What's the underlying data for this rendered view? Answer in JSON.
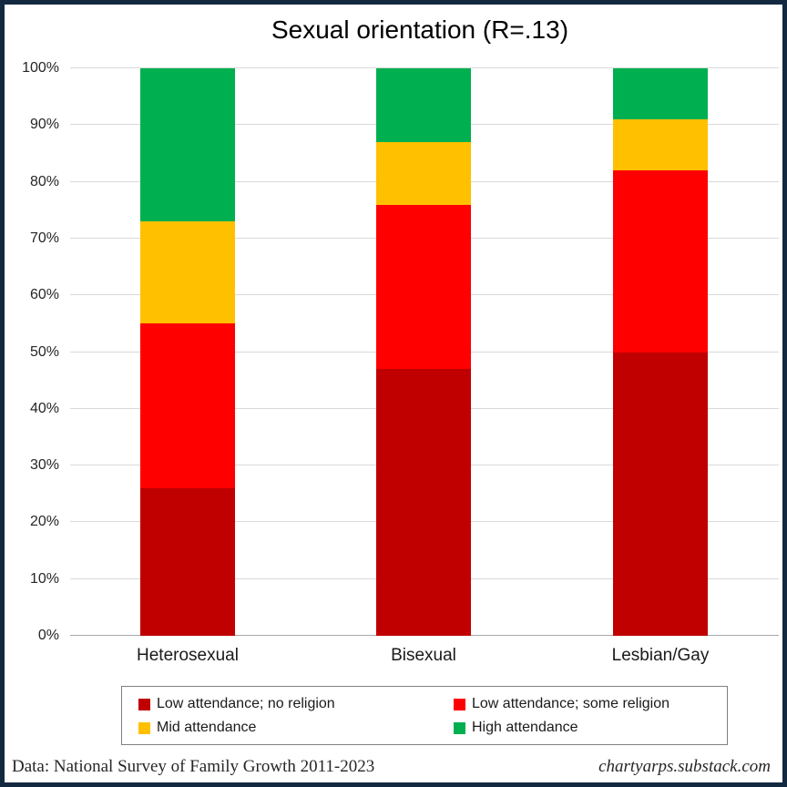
{
  "chart_data": {
    "type": "bar",
    "stacked": true,
    "title": "Sexual orientation (R=.13)",
    "categories": [
      "Heterosexual",
      "Bisexual",
      "Lesbian/Gay"
    ],
    "series": [
      {
        "name": "Low attendance; no religion",
        "color": "#C00000",
        "values": [
          26,
          47,
          50
        ]
      },
      {
        "name": "Low attendance; some religion",
        "color": "#FF0000",
        "values": [
          29,
          29,
          32
        ]
      },
      {
        "name": "Mid attendance",
        "color": "#FFC000",
        "values": [
          18,
          11,
          9
        ]
      },
      {
        "name": "High attendance",
        "color": "#00B050",
        "values": [
          27,
          13,
          9
        ]
      }
    ],
    "xlabel": "",
    "ylabel": "",
    "ylim": [
      0,
      100
    ],
    "y_tick_labels": [
      "0%",
      "10%",
      "20%",
      "30%",
      "40%",
      "50%",
      "60%",
      "70%",
      "80%",
      "90%",
      "100%"
    ],
    "grid": true,
    "legend_position": "bottom"
  },
  "footer": {
    "source": "Data: National Survey of Family Growth 2011-2023",
    "site": "chartyarps.substack.com"
  },
  "colors": {
    "frame_border": "#13293F",
    "gridline": "#D9D9D9",
    "axis_line": "#A6A6A6",
    "background": "#FFFFFF",
    "legend_border": "#808080"
  }
}
